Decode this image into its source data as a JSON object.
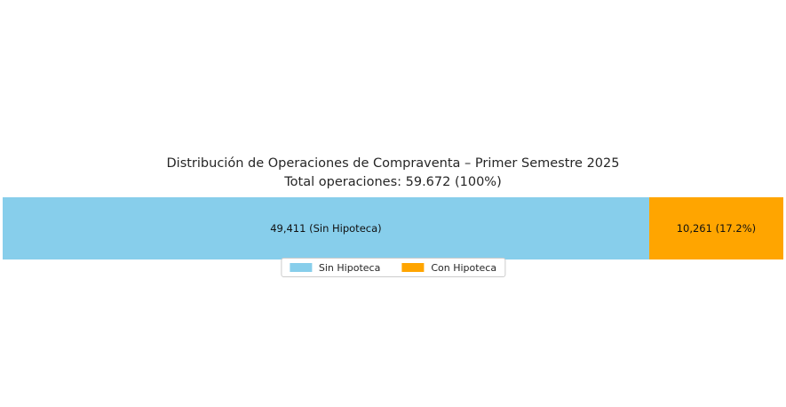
{
  "chart_data": {
    "type": "bar",
    "orientation": "horizontal",
    "stacked": true,
    "title": "Distribución de Operaciones de Compraventa – Primer Semestre 2025",
    "subtitle": "Total operaciones: 59.672 (100%)",
    "total": 59672,
    "total_label": "59.672 (100%)",
    "series": [
      {
        "name": "Sin Hipoteca",
        "value": 49411,
        "pct": 82.8,
        "bar_label": "49,411 (Sin Hipoteca)",
        "color": "#87CEEB"
      },
      {
        "name": "Con Hipoteca",
        "value": 10261,
        "pct": 17.2,
        "bar_label": "10,261 (17.2%)",
        "color": "#FFA500"
      }
    ],
    "legend_position": "bottom-center",
    "axes_visible": false,
    "background_color": "#ffffff",
    "text_color": "#262626"
  }
}
